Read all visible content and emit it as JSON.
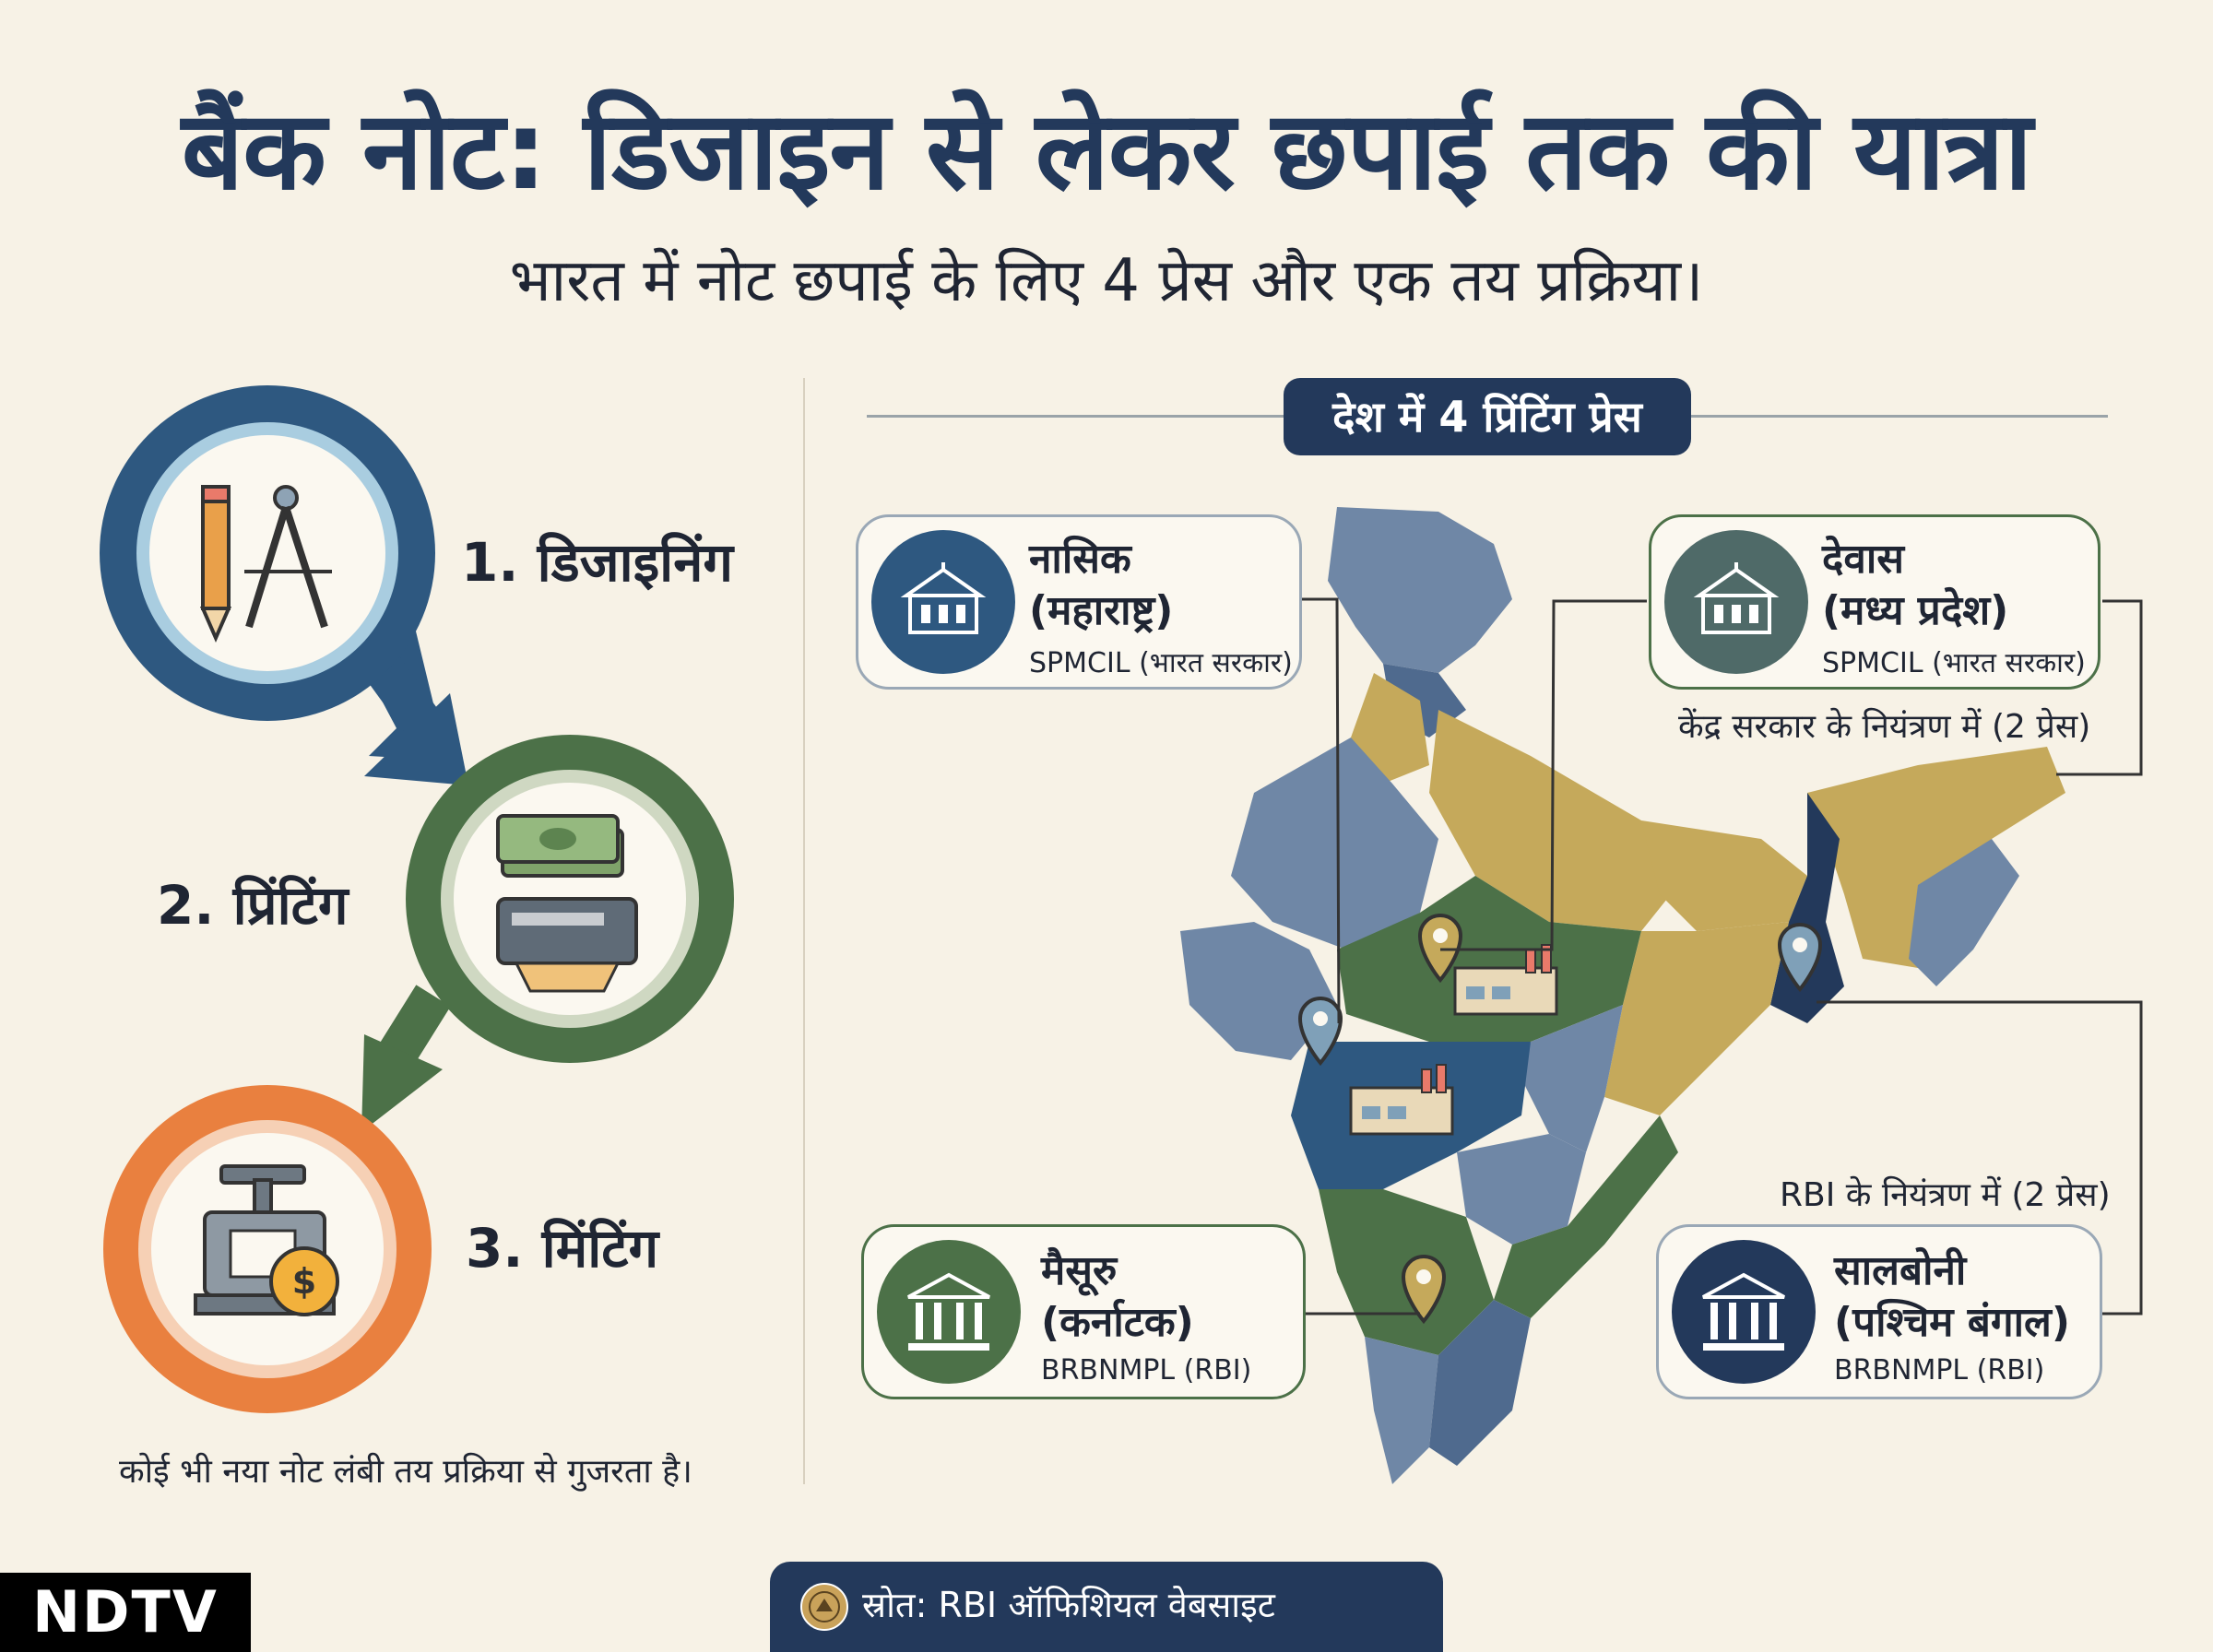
{
  "header": {
    "title": "बैंक नोट: डिजाइन से लेकर छपाई तक की यात्रा",
    "subtitle": "भारत में नोट छपाई के लिए 4 प्रेस और एक तय प्रक्रिया।"
  },
  "process": {
    "steps": [
      {
        "label": "1. डिजाइनिंग",
        "icon": "pencil-compass-icon",
        "color": "#2e5880"
      },
      {
        "label": "2. प्रिंटिंग",
        "icon": "money-printer-icon",
        "color": "#4c7148"
      },
      {
        "label": "3. मिंटिंग",
        "icon": "coin-press-icon",
        "color": "#e9803f"
      }
    ],
    "caption": "कोई भी नया नोट लंबी तय प्रक्रिया से गुजरता है।"
  },
  "map_section": {
    "badge": "देश में 4 प्रिंटिंग प्रेस",
    "presses": [
      {
        "city": "नासिक",
        "state": "(महाराष्ट्र)",
        "org": "SPMCIL (भारत सरकार)",
        "icon": "government-building-icon"
      },
      {
        "city": "देवास",
        "state": "(मध्य प्रदेश)",
        "org": "SPMCIL (भारत सरकार)",
        "icon": "government-building-icon"
      },
      {
        "city": "मैसूरु",
        "state": "(कर्नाटक)",
        "org": "BRBNMPL (RBI)",
        "icon": "bank-building-icon"
      },
      {
        "city": "सालबोनी",
        "state": "(पश्चिम बंगाल)",
        "org": "BRBNMPL (RBI)",
        "icon": "bank-building-icon"
      }
    ],
    "central_note": "केंद्र सरकार के नियंत्रण में (2 प्रेस)",
    "rbi_note": "RBI के नियंत्रण में (2 प्रेस)"
  },
  "footer": {
    "brand": "NDTV",
    "source": "स्रोत: RBI ऑफिशियल वेबसाइट",
    "source_icon": "rbi-seal-icon"
  },
  "colors": {
    "navy": "#23395b",
    "blue": "#2e5880",
    "green": "#4c7148",
    "orange": "#e9803f",
    "mustard": "#c5a95b",
    "slate": "#6f87a6",
    "background": "#f7f2e6"
  }
}
